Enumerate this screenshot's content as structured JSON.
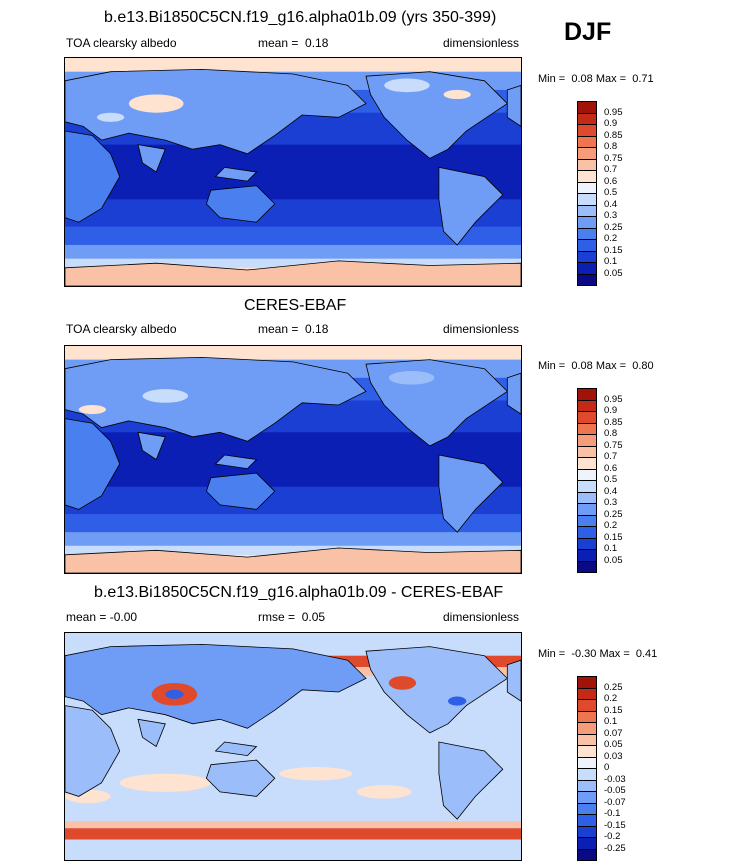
{
  "season": "DJF",
  "panels": [
    {
      "id": "model",
      "title": "b.e13.Bi1850C5CN.f19_g16.alpha01b.09 (yrs 350-399)",
      "left_text": "TOA clearsky albedo",
      "stat_label": "mean =",
      "stat_value": "0.18",
      "units": "dimensionless",
      "min_label": "Min =",
      "min_value": "0.08",
      "max_label": "Max =",
      "max_value": "0.71"
    },
    {
      "id": "obs",
      "title": "CERES-EBAF",
      "left_text": "TOA clearsky albedo",
      "stat_label": "mean =",
      "stat_value": "0.18",
      "units": "dimensionless",
      "min_label": "Min =",
      "min_value": "0.08",
      "max_label": "Max =",
      "max_value": "0.80"
    },
    {
      "id": "diff",
      "title": "b.e13.Bi1850C5CN.f19_g16.alpha01b.09 - CERES-EBAF",
      "left_text": "mean =  -0.00",
      "stat_label": "rmse =",
      "stat_value": "0.05",
      "units": "dimensionless",
      "min_label": "Min =",
      "min_value": "-0.30",
      "max_label": "Max =",
      "max_value": "0.41"
    }
  ],
  "chart_data": [
    {
      "type": "heatmap",
      "title": "b.e13.Bi1850C5CN.f19_g16.alpha01b.09 (yrs 350-399)",
      "variable": "TOA clearsky albedo",
      "mean": 0.18,
      "min": 0.08,
      "max": 0.71,
      "units": "dimensionless",
      "colorbar_levels": [
        "0.05",
        "0.1",
        "0.15",
        "0.2",
        "0.25",
        "0.3",
        "0.4",
        "0.5",
        "0.6",
        "0.7",
        "0.75",
        "0.8",
        "0.85",
        "0.9",
        "0.95"
      ],
      "colorbar_colors": [
        "#0a0a85",
        "#0b1fb4",
        "#1a3fd2",
        "#2e5fe6",
        "#4a7fef",
        "#6f9cf4",
        "#9bbdf9",
        "#c8dcfb",
        "#eef3fc",
        "#fde3d0",
        "#f9c2a6",
        "#f59c7a",
        "#ee7550",
        "#e04a2c",
        "#c42a15",
        "#a11208"
      ]
    },
    {
      "type": "heatmap",
      "title": "CERES-EBAF",
      "variable": "TOA clearsky albedo",
      "mean": 0.18,
      "min": 0.08,
      "max": 0.8,
      "units": "dimensionless",
      "colorbar_levels": [
        "0.05",
        "0.1",
        "0.15",
        "0.2",
        "0.25",
        "0.3",
        "0.4",
        "0.5",
        "0.6",
        "0.7",
        "0.75",
        "0.8",
        "0.85",
        "0.9",
        "0.95"
      ],
      "colorbar_colors": [
        "#0a0a85",
        "#0b1fb4",
        "#1a3fd2",
        "#2e5fe6",
        "#4a7fef",
        "#6f9cf4",
        "#9bbdf9",
        "#c8dcfb",
        "#eef3fc",
        "#fde3d0",
        "#f9c2a6",
        "#f59c7a",
        "#ee7550",
        "#e04a2c",
        "#c42a15",
        "#a11208"
      ]
    },
    {
      "type": "heatmap",
      "title": "b.e13.Bi1850C5CN.f19_g16.alpha01b.09 - CERES-EBAF",
      "mean": -0.0,
      "rmse": 0.05,
      "min": -0.3,
      "max": 0.41,
      "units": "dimensionless",
      "colorbar_levels": [
        "-0.25",
        "-0.2",
        "-0.15",
        "-0.1",
        "-0.07",
        "-0.05",
        "-0.03",
        "0",
        "0.03",
        "0.05",
        "0.07",
        "0.1",
        "0.15",
        "0.2",
        "0.25"
      ],
      "colorbar_colors": [
        "#0a0a85",
        "#0b1fb4",
        "#1a3fd2",
        "#2e5fe6",
        "#4a7fef",
        "#6f9cf4",
        "#9bbdf9",
        "#c8dcfb",
        "#eef3fc",
        "#fde3d0",
        "#f9c2a6",
        "#f59c7a",
        "#ee7550",
        "#e04a2c",
        "#c42a15",
        "#a11208"
      ]
    }
  ]
}
